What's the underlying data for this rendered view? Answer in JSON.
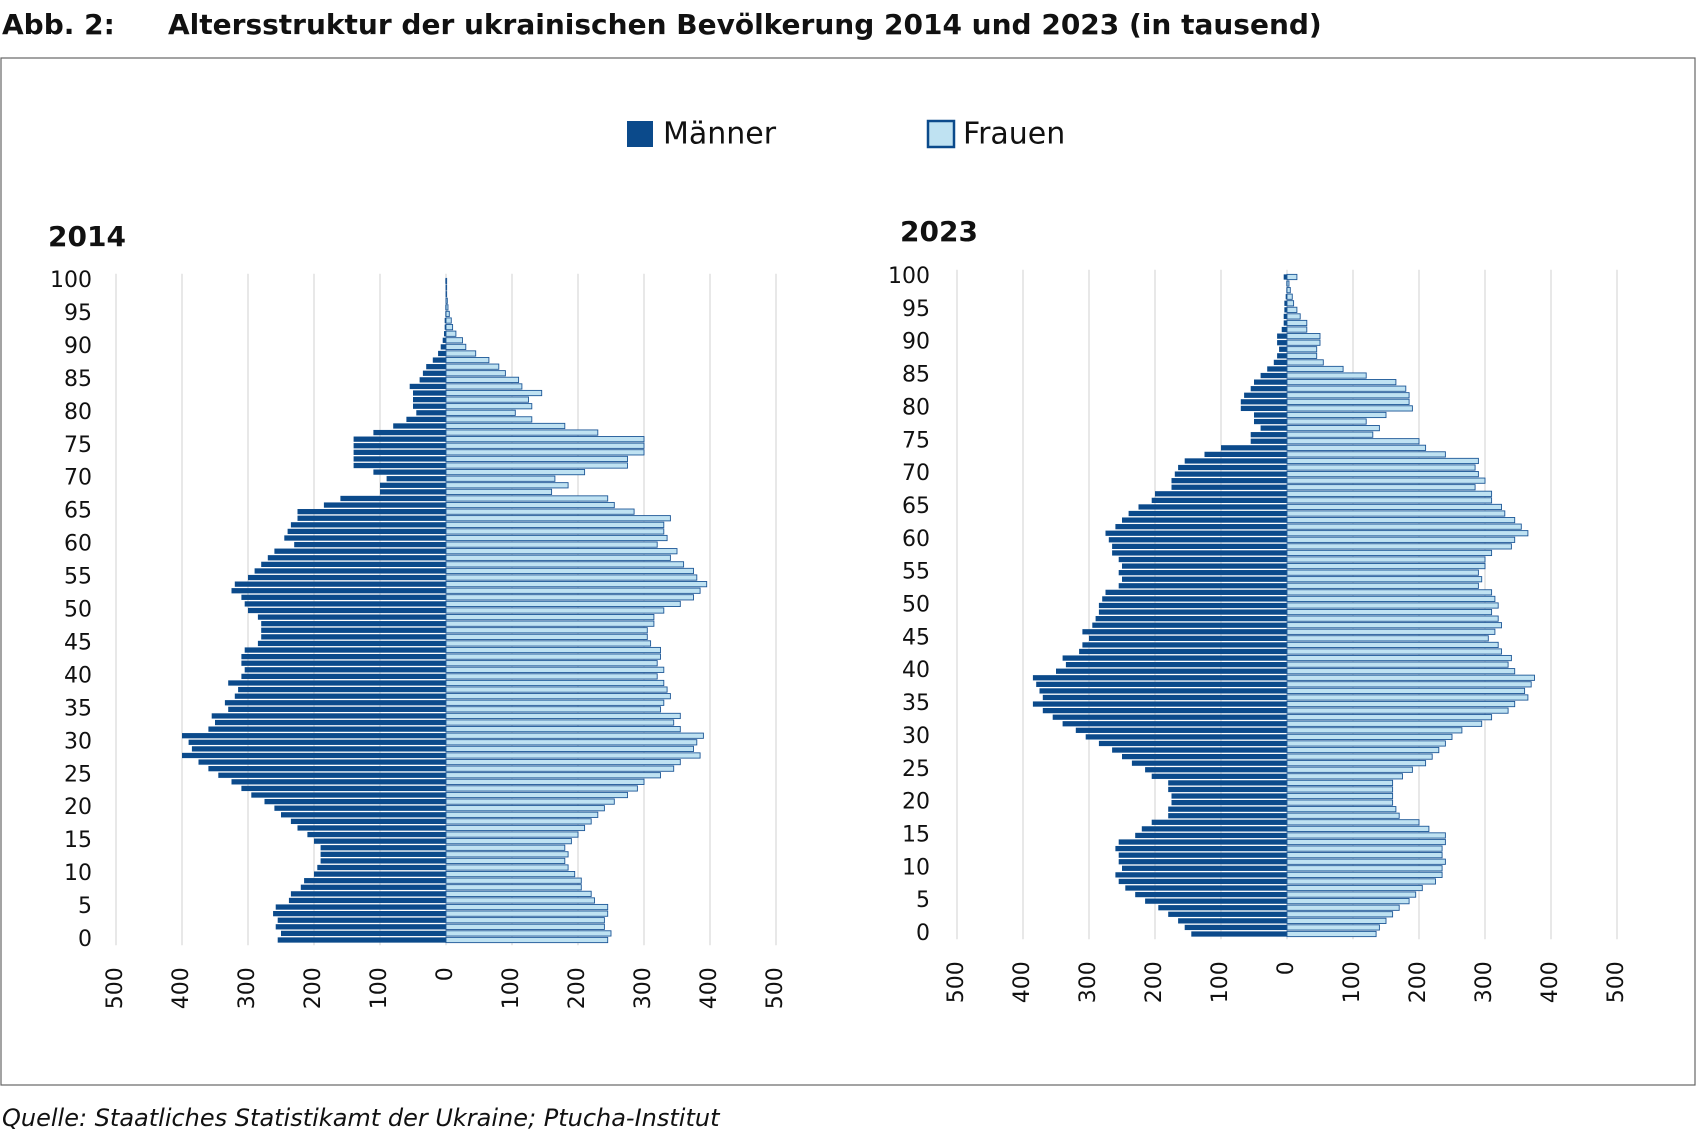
{
  "header": {
    "label": "Abb. 2:",
    "title": "Altersstruktur der ukrainischen Bevölkerung 2014 und 2023 (in tausend)"
  },
  "source": "Quelle: Staatliches Statistikamt der Ukraine; Ptucha-Institut",
  "chart_data": [
    {
      "type": "pyramid",
      "title": "2014",
      "categories": [
        "0",
        null,
        null,
        null,
        null,
        "5",
        null,
        null,
        null,
        null,
        "10",
        null,
        null,
        null,
        null,
        "15",
        null,
        null,
        null,
        null,
        "20",
        null,
        null,
        null,
        null,
        "25",
        null,
        null,
        null,
        null,
        "30",
        null,
        null,
        null,
        null,
        "35",
        null,
        null,
        null,
        null,
        "40",
        null,
        null,
        null,
        null,
        "45",
        null,
        null,
        null,
        null,
        "50",
        null,
        null,
        null,
        null,
        "55",
        null,
        null,
        null,
        null,
        "60",
        null,
        null,
        null,
        null,
        "65",
        null,
        null,
        null,
        null,
        "70",
        null,
        null,
        null,
        null,
        "75",
        null,
        null,
        null,
        null,
        "80",
        null,
        null,
        null,
        null,
        "85",
        null,
        null,
        null,
        null,
        "90",
        null,
        null,
        null,
        null,
        "95",
        null,
        null,
        null,
        null,
        "100"
      ],
      "series": [
        {
          "name": "Männer",
          "color": "#0b4a8b",
          "side": "left",
          "values": [
            255,
            250,
            258,
            255,
            262,
            258,
            238,
            235,
            220,
            215,
            200,
            195,
            190,
            190,
            190,
            200,
            210,
            225,
            235,
            250,
            260,
            275,
            295,
            310,
            325,
            345,
            360,
            375,
            400,
            385,
            390,
            400,
            360,
            350,
            355,
            330,
            335,
            320,
            315,
            330,
            310,
            305,
            310,
            310,
            305,
            285,
            280,
            280,
            280,
            285,
            300,
            305,
            310,
            325,
            320,
            300,
            290,
            280,
            270,
            260,
            230,
            245,
            240,
            235,
            225,
            225,
            185,
            160,
            100,
            100,
            90,
            110,
            140,
            140,
            140,
            140,
            140,
            110,
            80,
            60,
            45,
            50,
            50,
            50,
            55,
            40,
            35,
            30,
            20,
            12,
            8,
            5,
            3,
            2,
            2,
            1,
            1,
            0,
            0,
            0,
            1
          ]
        },
        {
          "name": "Frauen",
          "color": "#bfe2f2",
          "side": "right",
          "values": [
            245,
            250,
            240,
            240,
            245,
            245,
            225,
            220,
            205,
            205,
            195,
            185,
            180,
            185,
            180,
            190,
            200,
            210,
            220,
            230,
            240,
            255,
            275,
            290,
            300,
            325,
            345,
            355,
            385,
            375,
            380,
            390,
            355,
            345,
            355,
            325,
            330,
            340,
            335,
            330,
            320,
            330,
            320,
            325,
            325,
            310,
            305,
            305,
            315,
            315,
            330,
            355,
            375,
            385,
            395,
            380,
            375,
            360,
            340,
            350,
            320,
            335,
            330,
            330,
            340,
            285,
            255,
            245,
            160,
            185,
            165,
            210,
            275,
            275,
            300,
            300,
            300,
            230,
            180,
            130,
            105,
            130,
            125,
            145,
            115,
            110,
            90,
            80,
            65,
            45,
            30,
            25,
            15,
            10,
            8,
            5,
            3,
            2,
            1,
            1,
            1
          ]
        }
      ],
      "xlim": [
        -500,
        500
      ],
      "xticks": [
        {
          "value": -500,
          "label": "500"
        },
        {
          "value": -400,
          "label": "400"
        },
        {
          "value": -300,
          "label": "300"
        },
        {
          "value": -200,
          "label": "200"
        },
        {
          "value": -100,
          "label": "100"
        },
        0,
        100,
        200,
        300,
        400,
        500
      ],
      "grid": true
    },
    {
      "type": "pyramid",
      "title": "2023",
      "categories": [
        "0",
        null,
        null,
        null,
        null,
        "5",
        null,
        null,
        null,
        null,
        "10",
        null,
        null,
        null,
        null,
        "15",
        null,
        null,
        null,
        null,
        "20",
        null,
        null,
        null,
        null,
        "25",
        null,
        null,
        null,
        null,
        "30",
        null,
        null,
        null,
        null,
        "35",
        null,
        null,
        null,
        null,
        "40",
        null,
        null,
        null,
        null,
        "45",
        null,
        null,
        null,
        null,
        "50",
        null,
        null,
        null,
        null,
        "55",
        null,
        null,
        null,
        null,
        "60",
        null,
        null,
        null,
        null,
        "65",
        null,
        null,
        null,
        null,
        "70",
        null,
        null,
        null,
        null,
        "75",
        null,
        null,
        null,
        null,
        "80",
        null,
        null,
        null,
        null,
        "85",
        null,
        null,
        null,
        null,
        "90",
        null,
        null,
        null,
        null,
        "95",
        null,
        null,
        null,
        null,
        "100"
      ],
      "series": [
        {
          "color": "#0b4a8b",
          "side": "left",
          "values": [
            145,
            155,
            165,
            180,
            195,
            215,
            230,
            245,
            255,
            260,
            250,
            255,
            255,
            260,
            255,
            230,
            220,
            205,
            180,
            180,
            175,
            175,
            180,
            180,
            205,
            215,
            235,
            250,
            265,
            285,
            305,
            320,
            340,
            355,
            370,
            385,
            370,
            375,
            380,
            385,
            350,
            335,
            340,
            315,
            310,
            300,
            310,
            295,
            290,
            285,
            285,
            280,
            275,
            255,
            250,
            255,
            250,
            255,
            265,
            265,
            270,
            275,
            260,
            250,
            240,
            225,
            205,
            200,
            175,
            175,
            170,
            165,
            155,
            125,
            100,
            55,
            55,
            40,
            50,
            50,
            70,
            70,
            65,
            55,
            50,
            40,
            30,
            20,
            15,
            12,
            15,
            15,
            8,
            5,
            5,
            4,
            4,
            2,
            1,
            1,
            5
          ]
        },
        {
          "color": "#bfe2f2",
          "side": "right",
          "values": [
            135,
            140,
            150,
            160,
            170,
            185,
            195,
            205,
            225,
            235,
            235,
            240,
            235,
            235,
            240,
            240,
            215,
            200,
            170,
            165,
            160,
            160,
            160,
            160,
            175,
            190,
            210,
            220,
            230,
            240,
            250,
            265,
            295,
            310,
            335,
            345,
            365,
            360,
            370,
            375,
            345,
            335,
            340,
            325,
            320,
            305,
            315,
            325,
            320,
            310,
            320,
            315,
            310,
            290,
            295,
            290,
            300,
            300,
            310,
            340,
            345,
            365,
            355,
            345,
            330,
            325,
            310,
            310,
            285,
            300,
            290,
            285,
            290,
            240,
            210,
            200,
            130,
            140,
            120,
            150,
            190,
            185,
            185,
            180,
            165,
            120,
            85,
            55,
            45,
            45,
            50,
            50,
            30,
            30,
            20,
            15,
            10,
            8,
            5,
            3,
            15
          ]
        }
      ],
      "xlim": [
        -500,
        500
      ],
      "xticks": [
        {
          "value": -500,
          "label": "500"
        },
        {
          "value": -400,
          "label": "400"
        },
        {
          "value": -300,
          "label": "300"
        },
        {
          "value": -200,
          "label": "200"
        },
        {
          "value": -100,
          "label": "100"
        },
        0,
        100,
        200,
        300,
        400,
        500
      ],
      "grid": true
    }
  ]
}
